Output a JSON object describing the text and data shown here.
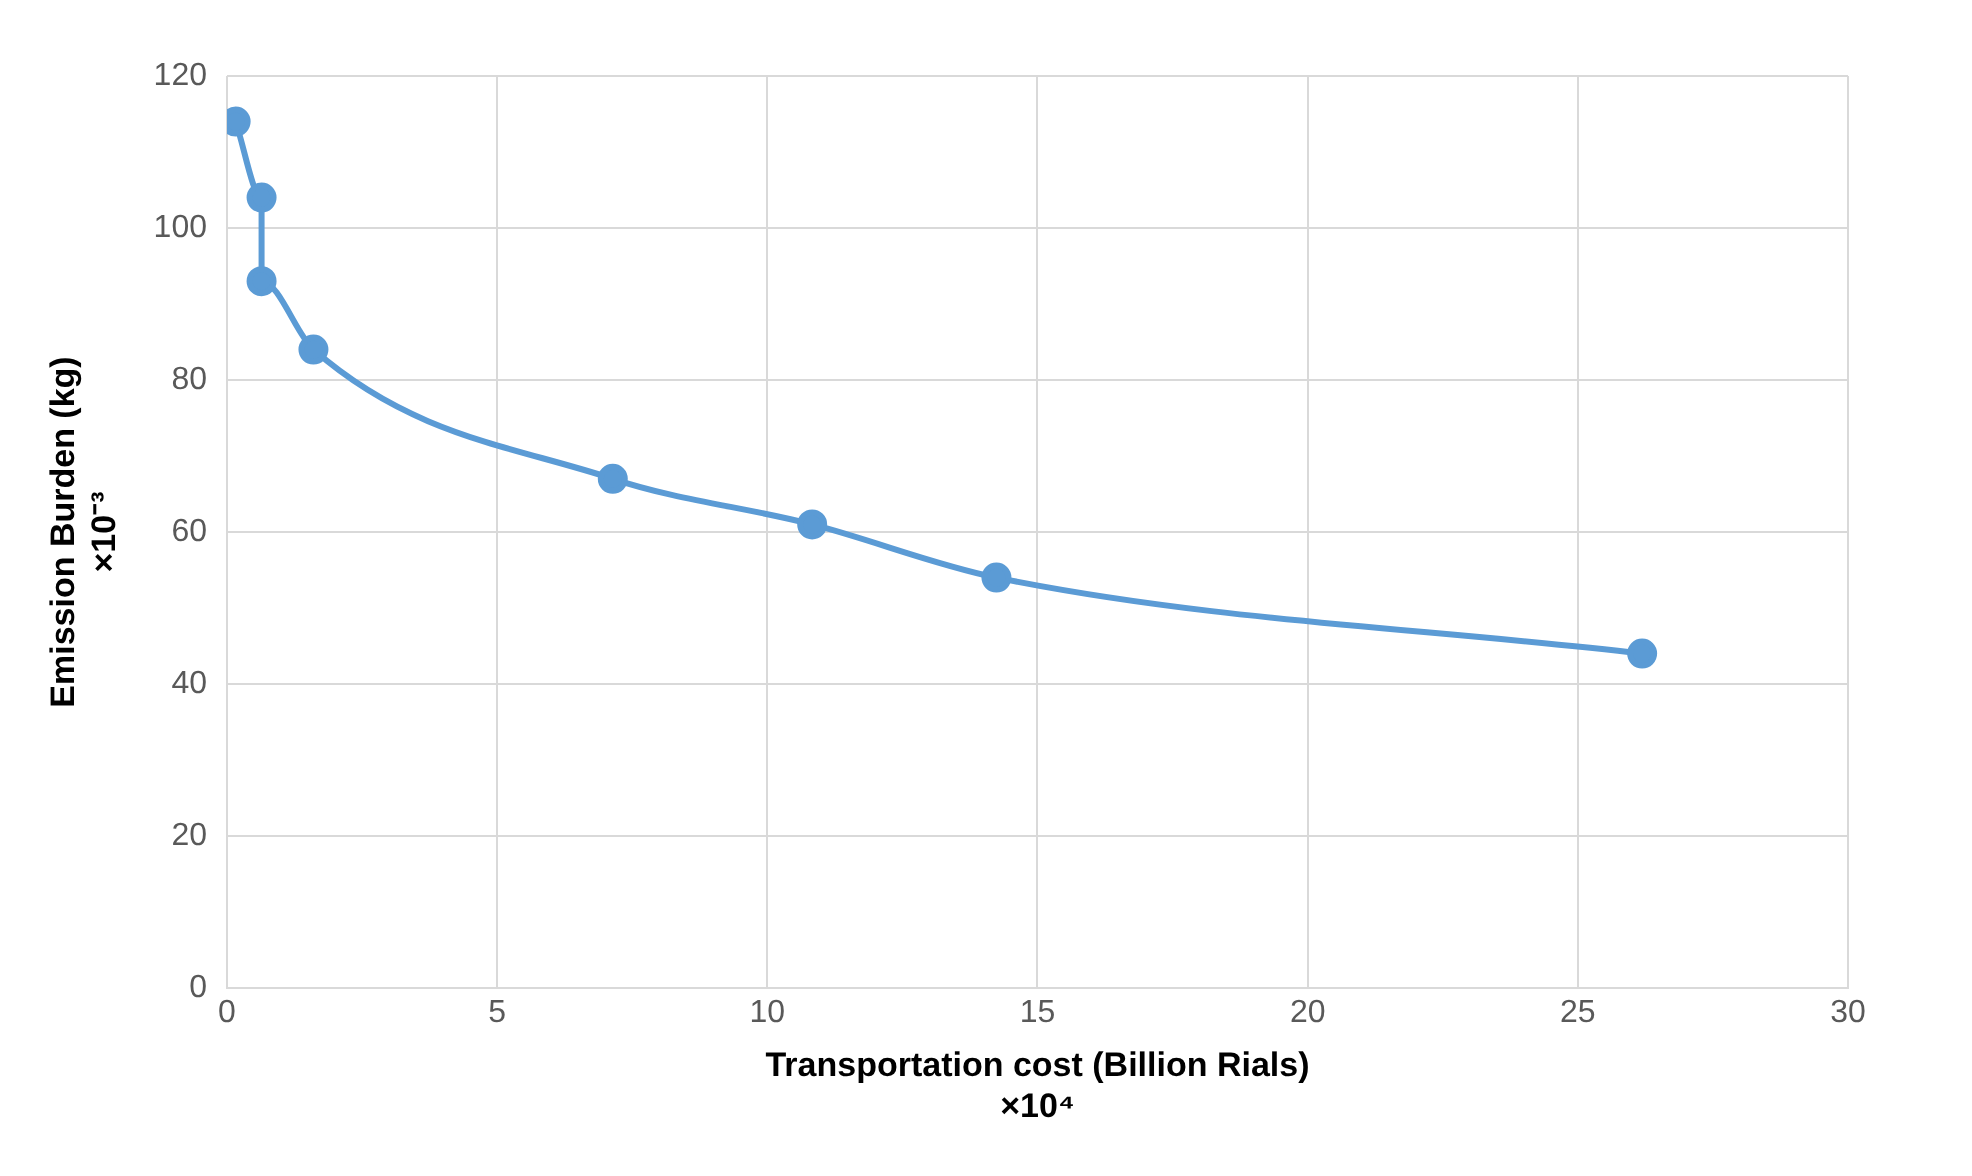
{
  "chart_data": {
    "type": "line",
    "xlabel": "Transportation cost (Billion Rials)\n×10⁴",
    "ylabel": "Emission Burden (kg)\n×10⁻³",
    "x": [
      0.16,
      0.64,
      0.64,
      1.6,
      7.14,
      10.83,
      14.24,
      26.19
    ],
    "series": [
      {
        "color": "#5b9bd5",
        "values": [
          114,
          104,
          93,
          84,
          67,
          61,
          54,
          44
        ]
      }
    ],
    "xlim": [
      0,
      30
    ],
    "xticks": [
      0,
      5,
      10,
      15,
      20,
      25,
      30
    ],
    "ylim": [
      0,
      120
    ],
    "yticks": [
      0,
      20,
      40,
      60,
      80,
      100,
      120
    ],
    "grid": true,
    "legend": false,
    "marker": "circle",
    "line_style": "solid"
  }
}
